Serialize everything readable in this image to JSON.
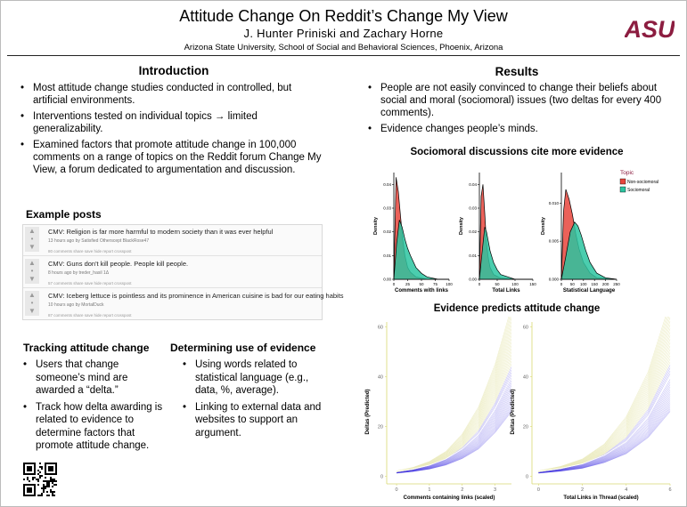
{
  "header": {
    "title": "Attitude Change On Reddit’s Change My View",
    "authors": "J. Hunter Priniski and Zachary Horne",
    "affiliation": "Arizona State University, School of Social and Behavioral Sciences, Phoenix, Arizona",
    "logo_text": "ASU",
    "logo_color": "#8C1D40"
  },
  "introduction": {
    "heading": "Introduction",
    "bullets": [
      "Most attitude change studies conducted in controlled, but artificial environments.",
      "Interventions tested on individual topics → limited generalizability.",
      "Examined factors that promote attitude change in 100,000 comments on a range of topics on the Reddit forum Change My View, a forum dedicated to argumentation and discussion."
    ]
  },
  "example_posts": {
    "heading": "Example posts",
    "posts": [
      {
        "title": "CMV: Religion is far more harmful to modern society than it was ever helpful",
        "meta": "13 hours ago by  Satisfied  Otherscept  BlackRose47",
        "links": "80 comments   share   save   hide   report   crosspost"
      },
      {
        "title": "CMV: Guns don't kill people. People kill people.",
        "meta": "8 hours ago by  treder_hasil  1Δ",
        "links": "57 comments   share   save   hide   report   crosspost"
      },
      {
        "title": "CMV: Iceberg lettuce is pointless and its prominence in American cuisine is bad for our eating habits",
        "meta": "10 hours ago by  MortalDuck",
        "links": "87 comments   share   save   hide   report   crosspost"
      }
    ]
  },
  "tracking": {
    "heading": "Tracking attitude change",
    "bullets": [
      "Users that change someone’s mind are awarded a “delta.”",
      "Track how delta awarding is related to evidence to determine factors that promote attitude change."
    ]
  },
  "evidence_use": {
    "heading": "Determining use of evidence",
    "bullets": [
      "Using words related to statistical language (e.g., data, %, average).",
      "Linking to external data and websites to support an argument."
    ]
  },
  "results": {
    "heading": "Results",
    "bullets": [
      "People are not easily convinced to change their beliefs about social and moral (sociomoral) issues (two deltas for every 400 comments).",
      "Evidence changes people’s minds."
    ]
  },
  "chart_data": [
    {
      "type": "area",
      "title": "Sociomoral discussions cite more evidence",
      "legend_title": "Topic",
      "legend_placement": "right",
      "series_colors": {
        "Non-sociomoral": "#E8453C",
        "Sociomoral": "#2CC4A0"
      },
      "panels": [
        {
          "xlabel": "Comments with links",
          "ylabel": "Density",
          "xlim": [
            0,
            100
          ],
          "ylim": [
            0,
            0.045
          ],
          "xticks": [
            "0",
            "25",
            "50",
            "75",
            "100"
          ],
          "yticks": [
            "0.00",
            "0.01",
            "0.02",
            "0.03",
            "0.04"
          ],
          "series": [
            {
              "name": "Non-sociomoral",
              "x": [
                0,
                4,
                8,
                12,
                16,
                20,
                25,
                30,
                40,
                60,
                80,
                100
              ],
              "y": [
                0,
                0.043,
                0.037,
                0.027,
                0.017,
                0.01,
                0.005,
                0.003,
                0.001,
                0,
                0,
                0
              ]
            },
            {
              "name": "Sociomoral",
              "x": [
                0,
                5,
                10,
                15,
                20,
                25,
                30,
                40,
                50,
                60,
                80,
                100
              ],
              "y": [
                0,
                0.015,
                0.025,
                0.022,
                0.017,
                0.013,
                0.01,
                0.005,
                0.0025,
                0.001,
                0,
                0
              ]
            }
          ]
        },
        {
          "xlabel": "Total Links",
          "ylabel": "Density",
          "xlim": [
            0,
            150
          ],
          "ylim": [
            0,
            0.045
          ],
          "xticks": [
            "0",
            "50",
            "100",
            "150"
          ],
          "yticks": [
            "0.00",
            "0.01",
            "0.02",
            "0.03",
            "0.04"
          ],
          "series": [
            {
              "name": "Non-sociomoral",
              "x": [
                0,
                5,
                10,
                15,
                20,
                25,
                30,
                40,
                60,
                100,
                150
              ],
              "y": [
                0,
                0.035,
                0.04,
                0.028,
                0.015,
                0.009,
                0.005,
                0.002,
                0.0005,
                0,
                0
              ]
            },
            {
              "name": "Sociomoral",
              "x": [
                0,
                8,
                15,
                20,
                25,
                30,
                40,
                50,
                60,
                80,
                100,
                150
              ],
              "y": [
                0,
                0.012,
                0.022,
                0.02,
                0.016,
                0.012,
                0.007,
                0.004,
                0.002,
                0.001,
                0,
                0
              ]
            }
          ]
        },
        {
          "xlabel": "Statistical Language",
          "ylabel": "Density",
          "xlim": [
            0,
            250
          ],
          "ylim": [
            0,
            0.014
          ],
          "xticks": [
            "0",
            "50",
            "100",
            "150",
            "200",
            "250"
          ],
          "yticks": [
            "0.000",
            "0.005",
            "0.010"
          ],
          "series": [
            {
              "name": "Non-sociomoral",
              "x": [
                0,
                10,
                20,
                35,
                50,
                65,
                80,
                100,
                130,
                160,
                250
              ],
              "y": [
                0,
                0.009,
                0.0118,
                0.0105,
                0.0085,
                0.006,
                0.004,
                0.0022,
                0.0008,
                0.0002,
                0
              ]
            },
            {
              "name": "Sociomoral",
              "x": [
                0,
                20,
                40,
                60,
                75,
                90,
                110,
                130,
                160,
                200,
                250
              ],
              "y": [
                0,
                0.003,
                0.0062,
                0.0075,
                0.007,
                0.0058,
                0.0038,
                0.0022,
                0.0008,
                0.0002,
                0
              ]
            }
          ]
        }
      ]
    },
    {
      "type": "line",
      "title": "Evidence predicts attitude change",
      "line_color": "#3A2CE0",
      "panels": [
        {
          "xlabel": "Comments containing links (scaled)",
          "ylabel": "Deltas (Predicted)",
          "xlim": [
            -0.3,
            3.5
          ],
          "ylim": [
            -3,
            62
          ],
          "xticks": [
            "0",
            "1",
            "2",
            "3"
          ],
          "yticks": [
            "0",
            "20",
            "40",
            "60"
          ],
          "x": [
            0,
            0.5,
            1,
            1.5,
            2,
            2.5,
            3,
            3.5
          ],
          "y": [
            2,
            3,
            4.5,
            7,
            11,
            17,
            27,
            40
          ],
          "y_upper": [
            2.2,
            3.6,
            6,
            10,
            17,
            28,
            45,
            68
          ]
        },
        {
          "xlabel": "Total Links in Thread (scaled)",
          "ylabel": "Deltas (Predicted)",
          "xlim": [
            -0.3,
            6.0
          ],
          "ylim": [
            -3,
            62
          ],
          "xticks": [
            "0",
            "2",
            "4",
            "6"
          ],
          "yticks": [
            "0",
            "20",
            "40",
            "60"
          ],
          "x": [
            0,
            1,
            2,
            3,
            4,
            5,
            6
          ],
          "y": [
            2,
            3.2,
            5,
            8.5,
            14,
            24,
            40
          ],
          "y_upper": [
            2.2,
            4,
            7,
            13,
            24,
            42,
            70
          ]
        }
      ]
    }
  ]
}
